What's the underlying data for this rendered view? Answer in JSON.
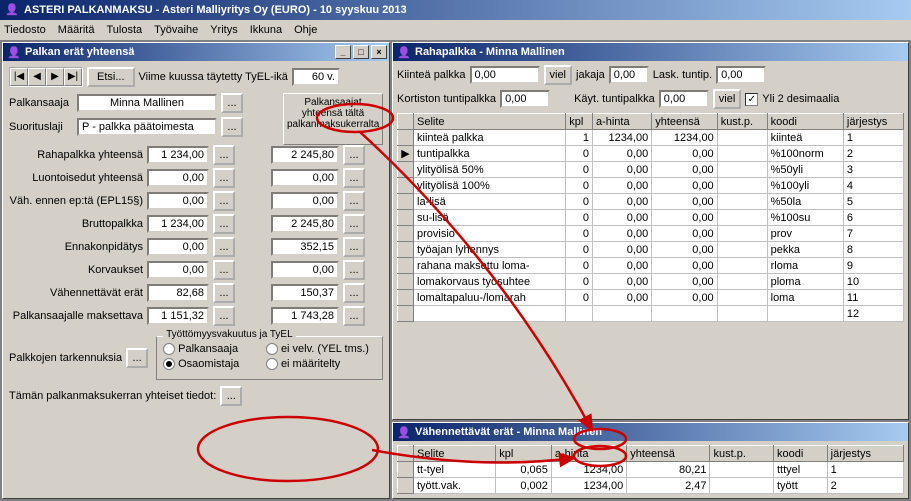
{
  "app": {
    "title": "ASTERI PALKANMAKSU - Asteri Malliyritys Oy (EURO) - 10 syyskuu 2013",
    "menu": [
      "Tiedosto",
      "Määritä",
      "Tulosta",
      "Työvaihe",
      "Yritys",
      "Ikkuna",
      "Ohje"
    ]
  },
  "left": {
    "title": "Palkan erät yhteensä",
    "etsi": "Etsi...",
    "viime_label": "Viime kuussa täytetty TyEL-ikä",
    "viime_val": "60 v.",
    "palkansaaja_label": "Palkansaaja",
    "palkansaaja_val": "Minna Mallinen",
    "suorituslaji_label": "Suorituslaji",
    "suorituslaji_val": "P    - palkka päätoimesta",
    "col2_header": "Palkansaajat yhteensä tältä palkanmaksukerralta",
    "rows": [
      {
        "label": "Rahapalkka yhteensä",
        "v1": "1 234,00",
        "v2": "2 245,80"
      },
      {
        "label": "Luontoisedut yhteensä",
        "v1": "0,00",
        "v2": "0,00"
      },
      {
        "label": "Väh. ennen ep:tä (EPL15§)",
        "v1": "0,00",
        "v2": "0,00"
      },
      {
        "label": "Bruttopalkka",
        "v1": "1 234,00",
        "v2": "2 245,80"
      },
      {
        "label": "Ennakonpidätys",
        "v1": "0,00",
        "v2": "352,15"
      },
      {
        "label": "Korvaukset",
        "v1": "0,00",
        "v2": "0,00"
      },
      {
        "label": "Vähennettävät erät",
        "v1": "82,68",
        "v2": "150,37"
      },
      {
        "label": "Palkansaajalle maksettava",
        "v1": "1 151,32",
        "v2": "1 743,28"
      }
    ],
    "palkkojen_label": "Palkkojen tarkennuksia",
    "taman_label": "Tämän palkanmaksukerran yhteiset tiedot:",
    "group_legend": "Työttömyysvakuutus ja TyEL",
    "radios_a": [
      {
        "label": "Palkansaaja",
        "sel": false
      },
      {
        "label": "Osaomistaja",
        "sel": true
      }
    ],
    "radios_b": [
      {
        "label": "ei velv. (YEL tms.)",
        "sel": false
      },
      {
        "label": "ei määritelty",
        "sel": false
      }
    ]
  },
  "top": {
    "title": "Rahapalkka - Minna Mallinen",
    "kiintea_label": "Kiinteä palkka",
    "kiintea_val": "0,00",
    "viel": "viel",
    "jakaja_label": "jakaja",
    "jakaja_val": "0,00",
    "lask_label": "Lask. tuntip.",
    "lask_val": "0,00",
    "kortiston_label": "Kortiston tuntipalkka",
    "kortiston_val": "0,00",
    "kayt_label": "Käyt. tuntipalkka",
    "kayt_val": "0,00",
    "yli2_label": "Yli 2 desimaalia",
    "cols": [
      "Selite",
      "kpl",
      "a-hinta",
      "yhteensä",
      "kust.p.",
      "koodi",
      "järjestys"
    ],
    "rows": [
      {
        "selite": "kiinteä palkka",
        "kpl": "1",
        "ah": "1234,00",
        "yh": "1234,00",
        "kp": "",
        "koodi": "kiinteä",
        "j": "1",
        "mark": ""
      },
      {
        "selite": "tuntipalkka",
        "kpl": "0",
        "ah": "0,00",
        "yh": "0,00",
        "kp": "",
        "koodi": "%100norm",
        "j": "2",
        "mark": "▶"
      },
      {
        "selite": "ylityölisä 50%",
        "kpl": "0",
        "ah": "0,00",
        "yh": "0,00",
        "kp": "",
        "koodi": "%50yli",
        "j": "3",
        "mark": ""
      },
      {
        "selite": "ylityölisä 100%",
        "kpl": "0",
        "ah": "0,00",
        "yh": "0,00",
        "kp": "",
        "koodi": "%100yli",
        "j": "4",
        "mark": ""
      },
      {
        "selite": "la-lisä",
        "kpl": "0",
        "ah": "0,00",
        "yh": "0,00",
        "kp": "",
        "koodi": "%50la",
        "j": "5",
        "mark": ""
      },
      {
        "selite": "su-lisä",
        "kpl": "0",
        "ah": "0,00",
        "yh": "0,00",
        "kp": "",
        "koodi": "%100su",
        "j": "6",
        "mark": ""
      },
      {
        "selite": "provisio",
        "kpl": "0",
        "ah": "0,00",
        "yh": "0,00",
        "kp": "",
        "koodi": "prov",
        "j": "7",
        "mark": ""
      },
      {
        "selite": "työajan lyhennys",
        "kpl": "0",
        "ah": "0,00",
        "yh": "0,00",
        "kp": "",
        "koodi": "pekka",
        "j": "8",
        "mark": ""
      },
      {
        "selite": "rahana maksettu loma-",
        "kpl": "0",
        "ah": "0,00",
        "yh": "0,00",
        "kp": "",
        "koodi": "rloma",
        "j": "9",
        "mark": ""
      },
      {
        "selite": "lomakorvaus työsuhtee",
        "kpl": "0",
        "ah": "0,00",
        "yh": "0,00",
        "kp": "",
        "koodi": "ploma",
        "j": "10",
        "mark": ""
      },
      {
        "selite": "lomaltapaluu-/lomarah",
        "kpl": "0",
        "ah": "0,00",
        "yh": "0,00",
        "kp": "",
        "koodi": "loma",
        "j": "11",
        "mark": ""
      },
      {
        "selite": "",
        "kpl": "",
        "ah": "",
        "yh": "",
        "kp": "",
        "koodi": "",
        "j": "12",
        "mark": ""
      }
    ]
  },
  "bot": {
    "title": "Vähennettävät erät - Minna Mallinen",
    "cols": [
      "Selite",
      "kpl",
      "a-hinta",
      "yhteensä",
      "kust.p.",
      "koodi",
      "järjestys"
    ],
    "rows": [
      {
        "selite": "tt-tyel",
        "kpl": "0,065",
        "ah": "1234,00",
        "yh": "80,21",
        "kp": "",
        "koodi": "tttyel",
        "j": "1"
      },
      {
        "selite": "tyött.vak.",
        "kpl": "0,002",
        "ah": "1234,00",
        "yh": "2,47",
        "kp": "",
        "koodi": "tyött",
        "j": "2"
      }
    ]
  },
  "annot": {
    "color": "#cc0000"
  }
}
